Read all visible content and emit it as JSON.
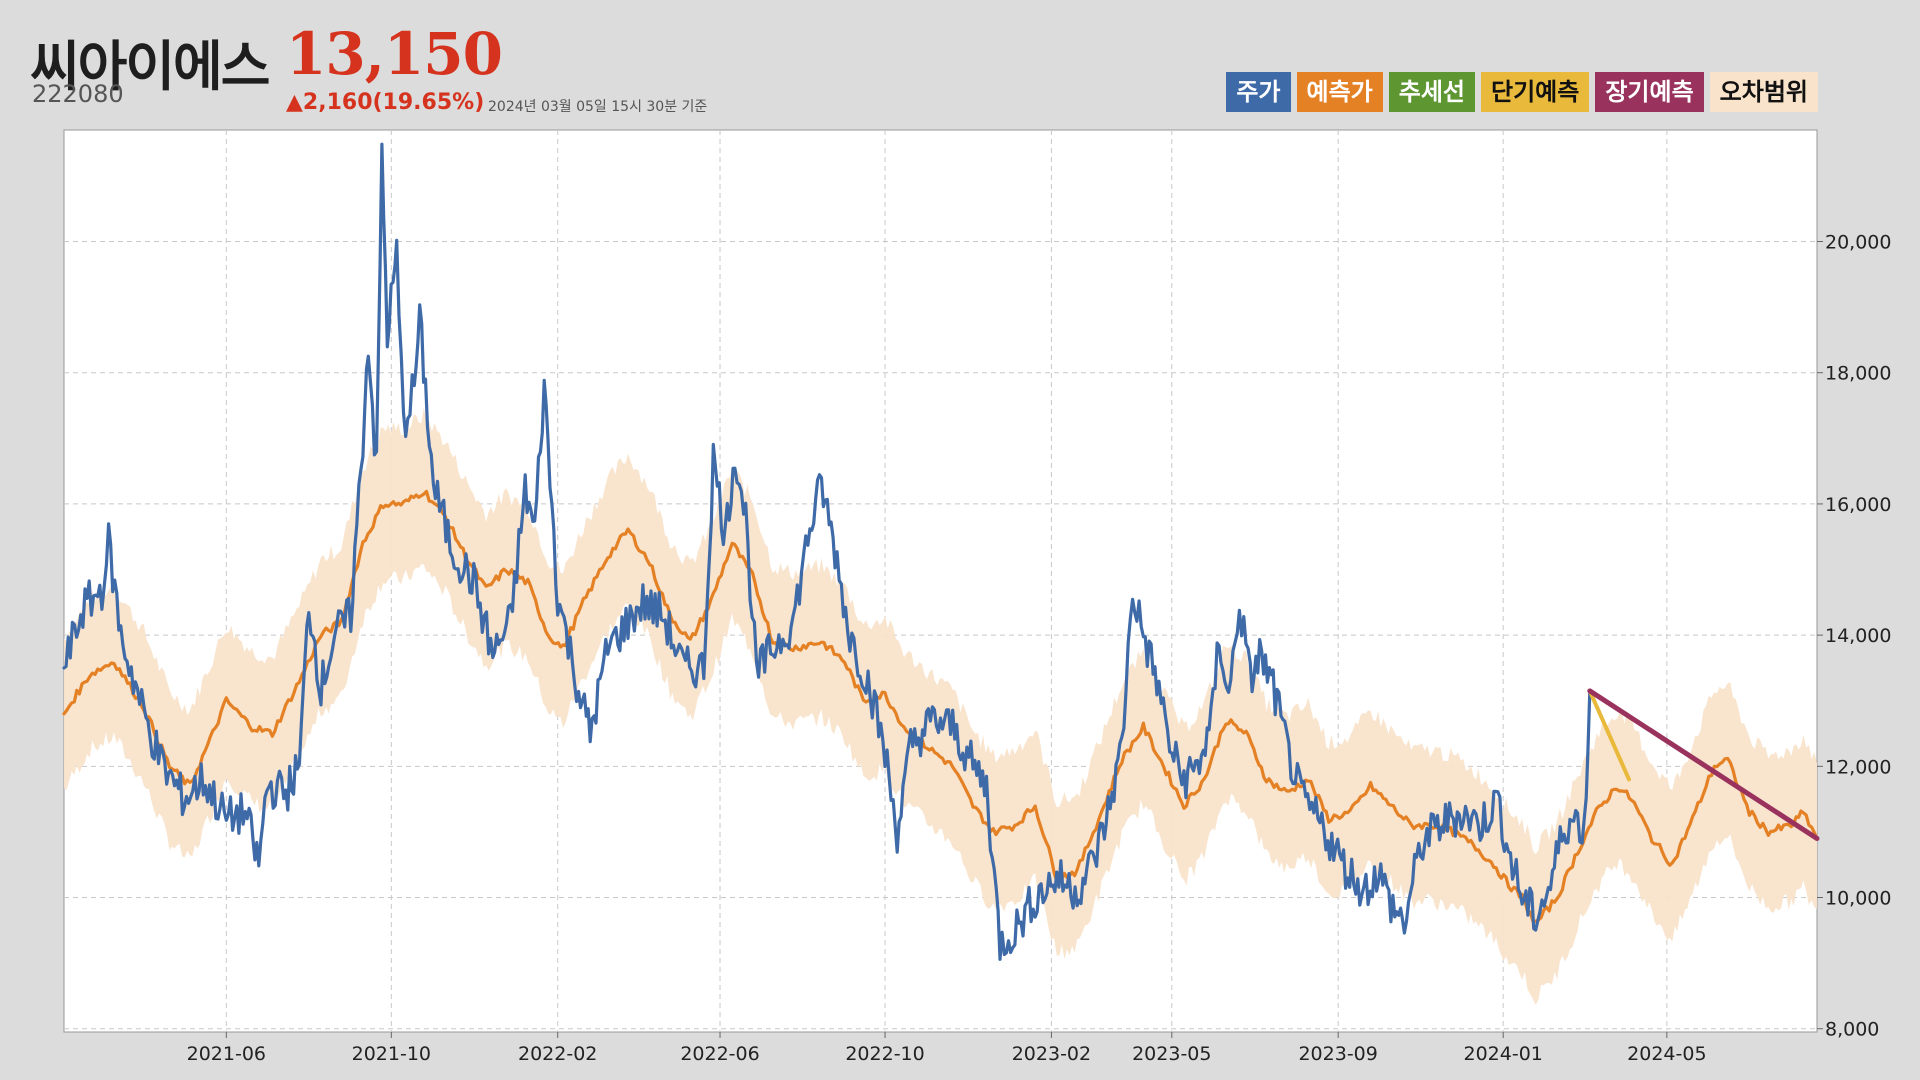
{
  "header": {
    "name": "씨아이에스",
    "code": "222080",
    "price": "13,150",
    "change": "▲2,160(19.65%)",
    "timestamp": "2024년 03월 05일 15시 30분 기준"
  },
  "legend": [
    {
      "label": "주가",
      "color": "#3e6aa8"
    },
    {
      "label": "예측가",
      "color": "#e58125"
    },
    {
      "label": "추세선",
      "color": "#5e9632"
    },
    {
      "label": "단기예측",
      "color": "#e8b93a"
    },
    {
      "label": "장기예측",
      "color": "#99335e"
    },
    {
      "label": "오차범위",
      "color": "#f9e3cb"
    }
  ],
  "chart_data": {
    "type": "line",
    "x_ticks": [
      "2021-06",
      "2021-10",
      "2022-02",
      "2022-06",
      "2022-10",
      "2023-02",
      "2023-05",
      "2023-09",
      "2024-01",
      "2024-05"
    ],
    "y_ticks": [
      "8,000",
      "10,000",
      "12,000",
      "14,000",
      "16,000",
      "18,000",
      "20,000"
    ],
    "xlim": [
      "2021-02-01",
      "2024-08-20"
    ],
    "ylim": [
      7950,
      21700
    ],
    "grid": true,
    "legend_position": "top-right",
    "series": [
      {
        "name": "주가",
        "color": "#3e6aa8",
        "points": [
          [
            "2021-02-01",
            13500
          ],
          [
            "2021-02-15",
            14400
          ],
          [
            "2021-03-01",
            14700
          ],
          [
            "2021-03-06",
            15400
          ],
          [
            "2021-03-15",
            14000
          ],
          [
            "2021-04-01",
            12800
          ],
          [
            "2021-04-15",
            12000
          ],
          [
            "2021-05-01",
            11500
          ],
          [
            "2021-05-15",
            11800
          ],
          [
            "2021-06-01",
            11200
          ],
          [
            "2021-06-15",
            11300
          ],
          [
            "2021-06-25",
            10500
          ],
          [
            "2021-07-01",
            11700
          ],
          [
            "2021-07-15",
            11600
          ],
          [
            "2021-07-25",
            12000
          ],
          [
            "2021-08-01",
            14500
          ],
          [
            "2021-08-10",
            13200
          ],
          [
            "2021-08-20",
            14000
          ],
          [
            "2021-09-01",
            14300
          ],
          [
            "2021-09-10",
            17000
          ],
          [
            "2021-09-14",
            18500
          ],
          [
            "2021-09-20",
            16500
          ],
          [
            "2021-09-24",
            21300
          ],
          [
            "2021-09-28",
            18600
          ],
          [
            "2021-10-05",
            19800
          ],
          [
            "2021-10-10",
            17200
          ],
          [
            "2021-10-18",
            17800
          ],
          [
            "2021-10-22",
            18800
          ],
          [
            "2021-11-01",
            16300
          ],
          [
            "2021-11-15",
            15300
          ],
          [
            "2021-12-01",
            14800
          ],
          [
            "2021-12-15",
            13700
          ],
          [
            "2021-12-28",
            14200
          ],
          [
            "2022-01-08",
            16200
          ],
          [
            "2022-01-15",
            15600
          ],
          [
            "2022-01-22",
            17800
          ],
          [
            "2022-02-01",
            14600
          ],
          [
            "2022-02-15",
            13300
          ],
          [
            "2022-02-25",
            12500
          ],
          [
            "2022-03-10",
            13800
          ],
          [
            "2022-03-25",
            14200
          ],
          [
            "2022-04-05",
            14500
          ],
          [
            "2022-04-20",
            14300
          ],
          [
            "2022-05-05",
            13500
          ],
          [
            "2022-05-20",
            13500
          ],
          [
            "2022-05-27",
            16700
          ],
          [
            "2022-06-05",
            15500
          ],
          [
            "2022-06-12",
            16800
          ],
          [
            "2022-06-20",
            15800
          ],
          [
            "2022-06-28",
            13400
          ],
          [
            "2022-07-10",
            13800
          ],
          [
            "2022-07-25",
            14200
          ],
          [
            "2022-08-05",
            15500
          ],
          [
            "2022-08-15",
            16300
          ],
          [
            "2022-08-25",
            15300
          ],
          [
            "2022-09-05",
            14000
          ],
          [
            "2022-09-20",
            13200
          ],
          [
            "2022-10-01",
            12200
          ],
          [
            "2022-10-10",
            11000
          ],
          [
            "2022-10-20",
            12300
          ],
          [
            "2022-11-05",
            12700
          ],
          [
            "2022-11-20",
            12600
          ],
          [
            "2022-12-05",
            12000
          ],
          [
            "2022-12-15",
            11700
          ],
          [
            "2022-12-25",
            9300
          ],
          [
            "2023-01-05",
            9500
          ],
          [
            "2023-01-20",
            10000
          ],
          [
            "2023-02-05",
            10300
          ],
          [
            "2023-02-20",
            10100
          ],
          [
            "2023-03-05",
            10600
          ],
          [
            "2023-03-15",
            11300
          ],
          [
            "2023-03-25",
            12300
          ],
          [
            "2023-04-02",
            14700
          ],
          [
            "2023-04-10",
            14000
          ],
          [
            "2023-04-20",
            13300
          ],
          [
            "2023-05-01",
            12200
          ],
          [
            "2023-05-10",
            11800
          ],
          [
            "2023-05-20",
            12000
          ],
          [
            "2023-05-30",
            12600
          ],
          [
            "2023-06-05",
            14000
          ],
          [
            "2023-06-12",
            13000
          ],
          [
            "2023-06-20",
            14500
          ],
          [
            "2023-06-28",
            13300
          ],
          [
            "2023-07-05",
            13700
          ],
          [
            "2023-07-15",
            13200
          ],
          [
            "2023-07-25",
            12300
          ],
          [
            "2023-08-05",
            11500
          ],
          [
            "2023-08-20",
            11100
          ],
          [
            "2023-09-05",
            10500
          ],
          [
            "2023-09-20",
            10100
          ],
          [
            "2023-10-01",
            10400
          ],
          [
            "2023-10-10",
            9900
          ],
          [
            "2023-10-20",
            9600
          ],
          [
            "2023-11-01",
            10800
          ],
          [
            "2023-11-15",
            11100
          ],
          [
            "2023-12-01",
            11300
          ],
          [
            "2023-12-15",
            11100
          ],
          [
            "2023-12-28",
            11500
          ],
          [
            "2024-01-05",
            10700
          ],
          [
            "2024-01-15",
            10000
          ],
          [
            "2024-01-25",
            9700
          ],
          [
            "2024-02-05",
            10200
          ],
          [
            "2024-02-15",
            11100
          ],
          [
            "2024-02-25",
            11200
          ],
          [
            "2024-03-01",
            11000
          ],
          [
            "2024-03-05",
            13150
          ]
        ]
      },
      {
        "name": "예측가",
        "color": "#e58125",
        "points": [
          [
            "2021-02-01",
            12800
          ],
          [
            "2021-02-20",
            13400
          ],
          [
            "2021-03-10",
            13600
          ],
          [
            "2021-04-01",
            12900
          ],
          [
            "2021-04-20",
            12000
          ],
          [
            "2021-05-05",
            11700
          ],
          [
            "2021-05-20",
            12400
          ],
          [
            "2021-06-01",
            13000
          ],
          [
            "2021-06-20",
            12600
          ],
          [
            "2021-07-05",
            12500
          ],
          [
            "2021-07-25",
            13300
          ],
          [
            "2021-08-10",
            14000
          ],
          [
            "2021-08-25",
            14200
          ],
          [
            "2021-09-10",
            15400
          ],
          [
            "2021-09-25",
            16000
          ],
          [
            "2021-10-10",
            16000
          ],
          [
            "2021-10-25",
            16200
          ],
          [
            "2021-11-10",
            15800
          ],
          [
            "2021-11-25",
            15200
          ],
          [
            "2021-12-10",
            14700
          ],
          [
            "2021-12-25",
            15000
          ],
          [
            "2022-01-10",
            14800
          ],
          [
            "2022-01-25",
            14000
          ],
          [
            "2022-02-05",
            13800
          ],
          [
            "2022-02-20",
            14500
          ],
          [
            "2022-03-10",
            15200
          ],
          [
            "2022-03-25",
            15600
          ],
          [
            "2022-04-10",
            15100
          ],
          [
            "2022-04-25",
            14300
          ],
          [
            "2022-05-10",
            13900
          ],
          [
            "2022-05-25",
            14500
          ],
          [
            "2022-06-10",
            15400
          ],
          [
            "2022-06-25",
            14900
          ],
          [
            "2022-07-10",
            13900
          ],
          [
            "2022-07-25",
            13800
          ],
          [
            "2022-08-15",
            13900
          ],
          [
            "2022-09-01",
            13600
          ],
          [
            "2022-09-15",
            13000
          ],
          [
            "2022-10-01",
            13100
          ],
          [
            "2022-10-15",
            12600
          ],
          [
            "2022-11-01",
            12300
          ],
          [
            "2022-11-20",
            12000
          ],
          [
            "2022-12-05",
            11400
          ],
          [
            "2022-12-20",
            11000
          ],
          [
            "2023-01-05",
            11100
          ],
          [
            "2023-01-20",
            11400
          ],
          [
            "2023-02-05",
            10300
          ],
          [
            "2023-02-20",
            10400
          ],
          [
            "2023-03-10",
            11300
          ],
          [
            "2023-03-25",
            12100
          ],
          [
            "2023-04-10",
            12600
          ],
          [
            "2023-04-25",
            12000
          ],
          [
            "2023-05-10",
            11400
          ],
          [
            "2023-05-25",
            11800
          ],
          [
            "2023-06-10",
            12700
          ],
          [
            "2023-06-25",
            12500
          ],
          [
            "2023-07-10",
            11800
          ],
          [
            "2023-07-25",
            11600
          ],
          [
            "2023-08-10",
            11800
          ],
          [
            "2023-08-25",
            11200
          ],
          [
            "2023-09-10",
            11300
          ],
          [
            "2023-09-25",
            11700
          ],
          [
            "2023-10-10",
            11400
          ],
          [
            "2023-10-25",
            11100
          ],
          [
            "2023-11-10",
            11100
          ],
          [
            "2023-11-25",
            11000
          ],
          [
            "2023-12-10",
            10800
          ],
          [
            "2023-12-25",
            10500
          ],
          [
            "2024-01-05",
            10200
          ],
          [
            "2024-01-15",
            10000
          ],
          [
            "2024-01-25",
            9600
          ],
          [
            "2024-02-10",
            10000
          ],
          [
            "2024-02-25",
            10700
          ],
          [
            "2024-03-10",
            11300
          ],
          [
            "2024-03-25",
            11700
          ],
          [
            "2024-04-05",
            11500
          ],
          [
            "2024-04-20",
            10900
          ],
          [
            "2024-05-05",
            10500
          ],
          [
            "2024-05-20",
            11200
          ],
          [
            "2024-06-05",
            12000
          ],
          [
            "2024-06-15",
            12100
          ],
          [
            "2024-07-01",
            11300
          ],
          [
            "2024-07-15",
            11000
          ],
          [
            "2024-08-01",
            11100
          ],
          [
            "2024-08-10",
            11300
          ],
          [
            "2024-08-20",
            10900
          ]
        ]
      },
      {
        "name": "단기예측",
        "color": "#e8b93a",
        "points": [
          [
            "2024-03-05",
            13150
          ],
          [
            "2024-04-03",
            11800
          ]
        ]
      },
      {
        "name": "장기예측",
        "color": "#99335e",
        "points": [
          [
            "2024-03-05",
            13150
          ],
          [
            "2024-08-20",
            10900
          ]
        ]
      }
    ],
    "error_band": {
      "name": "오차범위",
      "color": "#f9e3cb",
      "width": 1150
    }
  }
}
